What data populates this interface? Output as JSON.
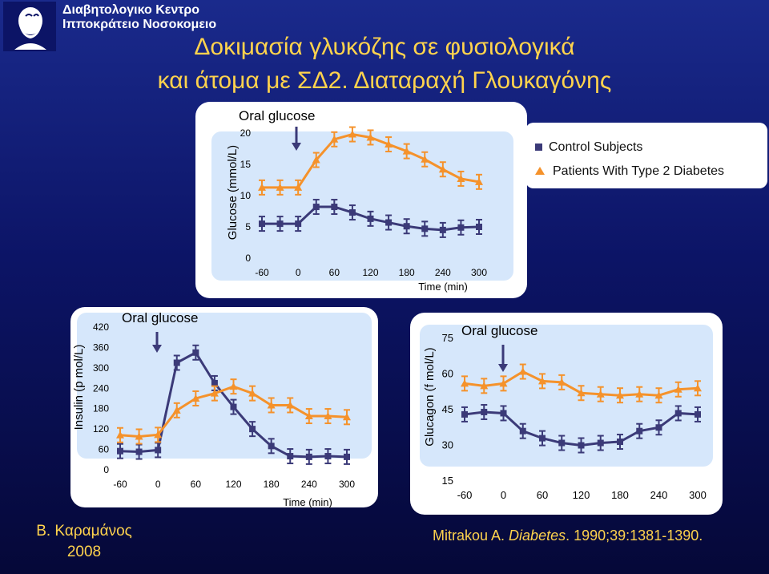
{
  "header": {
    "line1": "Διαβητολογικο Κεντρο",
    "line2": "Ιπποκράτειο Νοσοκομειο",
    "logo_icon": "hippocrates-logo-icon"
  },
  "title": {
    "line1": "Δοκιμασία γλυκόζης σε φυσιολογικά",
    "line2": "και άτομα με ΣΔ2. Διαταραχή Γλουκαγόνης"
  },
  "legend": {
    "control": "Control Subjects",
    "patients": "Patients With Type 2 Diabetes"
  },
  "colors": {
    "control": "#3b3a78",
    "patients": "#f5922b",
    "arrow": "#3b3a78",
    "title": "#ffd34d",
    "panel_bg": "#d6e7fb"
  },
  "chart_data": [
    {
      "type": "line",
      "annotation": "Oral glucose",
      "ylabel": "Glucose (mmol/L)",
      "xlabel": "Time (min)",
      "x": [
        -60,
        -30,
        0,
        30,
        60,
        90,
        120,
        150,
        180,
        210,
        240,
        270,
        300
      ],
      "xticks": [
        -60,
        0,
        60,
        120,
        180,
        240,
        300
      ],
      "yticks": [
        0,
        5,
        10,
        15,
        20
      ],
      "xlim": [
        -60,
        300
      ],
      "ylim": [
        0,
        20
      ],
      "series": [
        {
          "name": "Control Subjects",
          "values": [
            5.5,
            5.5,
            5.5,
            8.2,
            8.2,
            7.3,
            6.3,
            5.7,
            5.1,
            4.7,
            4.5,
            4.9,
            5.0
          ]
        },
        {
          "name": "Patients With Type 2 Diabetes",
          "values": [
            11.3,
            11.3,
            11.3,
            15.7,
            19.0,
            19.8,
            19.3,
            18.2,
            17.1,
            15.8,
            14.2,
            12.7,
            12.2
          ]
        }
      ]
    },
    {
      "type": "line",
      "annotation": "Oral glucose",
      "ylabel": "Insulin (p mol/L)",
      "xlabel": "Time (min)",
      "x": [
        -60,
        -30,
        0,
        30,
        60,
        90,
        120,
        150,
        180,
        210,
        240,
        270,
        300
      ],
      "xticks": [
        -60,
        0,
        60,
        120,
        180,
        240,
        300
      ],
      "yticks": [
        0,
        60,
        120,
        180,
        240,
        300,
        360,
        420
      ],
      "xlim": [
        -60,
        300
      ],
      "ylim": [
        0,
        420
      ],
      "series": [
        {
          "name": "Control Subjects",
          "values": [
            55,
            53,
            58,
            315,
            345,
            255,
            185,
            120,
            70,
            40,
            38,
            40,
            38
          ]
        },
        {
          "name": "Patients With Type 2 Diabetes",
          "values": [
            102,
            98,
            103,
            175,
            210,
            225,
            245,
            225,
            190,
            190,
            158,
            158,
            155
          ]
        }
      ]
    },
    {
      "type": "line",
      "annotation": "Oral glucose",
      "ylabel": "Glucagon (f mol/L)",
      "xlabel": "",
      "x": [
        -60,
        -30,
        0,
        30,
        60,
        90,
        120,
        150,
        180,
        210,
        240,
        270,
        300
      ],
      "xticks": [
        -60,
        0,
        60,
        120,
        180,
        240,
        300
      ],
      "yticks": [
        15,
        30,
        45,
        60,
        75
      ],
      "xlim": [
        -60,
        300
      ],
      "ylim": [
        15,
        75
      ],
      "series": [
        {
          "name": "Control Subjects",
          "values": [
            43,
            44,
            43.5,
            36,
            33,
            31,
            30,
            31,
            31.5,
            36,
            37.5,
            43.5,
            43
          ]
        },
        {
          "name": "Patients With Type 2 Diabetes",
          "values": [
            56,
            55,
            56,
            61,
            57,
            56.5,
            52,
            51.5,
            51,
            51.5,
            51,
            53.5,
            54
          ]
        }
      ]
    }
  ],
  "footer": {
    "author_line1": "Β. Καραμάνος",
    "author_line2": "2008",
    "citation_prefix": "Mitrakou A. ",
    "citation_journal": "Diabetes",
    "citation_suffix": ". 1990;39:1381-1390."
  }
}
